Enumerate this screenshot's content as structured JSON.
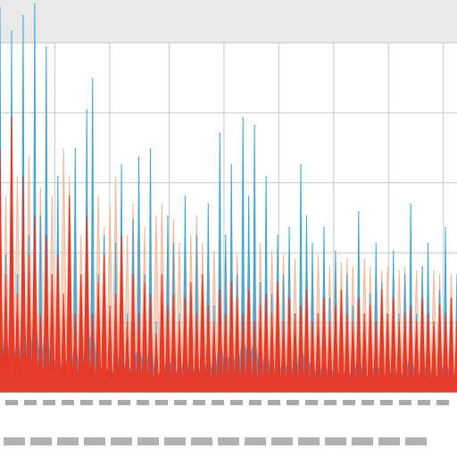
{
  "chart_data": {
    "type": "area",
    "title": "",
    "xlabel": "",
    "ylabel": "",
    "ylim": [
      0,
      100
    ],
    "grid": true,
    "colors": {
      "series_blue": "#3aa6d6",
      "series_red": "#f0321e",
      "series_peach": "#f3b69a",
      "grid": "#c8c8c8",
      "header_band": "#e9e9e9",
      "axis_text": "#555555"
    },
    "x": [
      1,
      2,
      3,
      4,
      5,
      6,
      7,
      8,
      9,
      10,
      11,
      12,
      13,
      14,
      15,
      16,
      17,
      18,
      19,
      20,
      21,
      22,
      23,
      24,
      25,
      26,
      27,
      28,
      29,
      30,
      31,
      32,
      33,
      34,
      35,
      36,
      37,
      38,
      39,
      40,
      41,
      42,
      43,
      44,
      45,
      46,
      47,
      48,
      49,
      50,
      51,
      52,
      53,
      54,
      55,
      56,
      57,
      58,
      59,
      60,
      61,
      62,
      63,
      64,
      65,
      66,
      67,
      68,
      69,
      70,
      71,
      72,
      73,
      74,
      75,
      76,
      77,
      78,
      79,
      80
    ],
    "series": [
      {
        "key": "blue",
        "values": [
          98,
          35,
          92,
          30,
          96,
          40,
          99,
          45,
          88,
          30,
          55,
          20,
          28,
          62,
          25,
          72,
          80,
          30,
          40,
          18,
          38,
          58,
          20,
          44,
          60,
          30,
          62,
          18,
          26,
          45,
          38,
          20,
          50,
          18,
          40,
          20,
          48,
          22,
          66,
          40,
          58,
          30,
          70,
          50,
          68,
          28,
          55,
          25,
          40,
          30,
          42,
          20,
          58,
          45,
          38,
          20,
          42,
          24,
          36,
          18,
          30,
          22,
          46,
          20,
          25,
          38,
          28,
          18,
          36,
          20,
          30,
          48,
          20,
          32,
          38,
          18,
          26,
          42,
          20,
          30
        ]
      },
      {
        "key": "red",
        "values": [
          62,
          30,
          70,
          25,
          55,
          35,
          45,
          20,
          40,
          30,
          35,
          25,
          50,
          20,
          30,
          45,
          20,
          28,
          35,
          22,
          25,
          40,
          18,
          30,
          20,
          28,
          25,
          15,
          30,
          22,
          25,
          18,
          24,
          28,
          20,
          30,
          22,
          18,
          26,
          20,
          28,
          24,
          20,
          26,
          18,
          22,
          25,
          20,
          28,
          18,
          24,
          20,
          22,
          26,
          18,
          20,
          24,
          18,
          22,
          26,
          20,
          18,
          24,
          20,
          22,
          18,
          26,
          20,
          24,
          18,
          20,
          22,
          18,
          24,
          20,
          18,
          22,
          20,
          24,
          18
        ]
      },
      {
        "key": "peach",
        "values": [
          40,
          50,
          45,
          55,
          42,
          60,
          48,
          52,
          58,
          50,
          45,
          62,
          55,
          48,
          40,
          52,
          45,
          50,
          42,
          48,
          55,
          45,
          40,
          48,
          50,
          42,
          38,
          45,
          48,
          40,
          44,
          38,
          42,
          40,
          45,
          38,
          40,
          36,
          42,
          38,
          40,
          35,
          38,
          40,
          36,
          38,
          34,
          36,
          38,
          35,
          36,
          34,
          35,
          36,
          33,
          35,
          34,
          32,
          35,
          33,
          34,
          32,
          33,
          34,
          32,
          33,
          31,
          32,
          33,
          31,
          32,
          30,
          31,
          32,
          30,
          31,
          30,
          29,
          30,
          29
        ]
      }
    ]
  }
}
